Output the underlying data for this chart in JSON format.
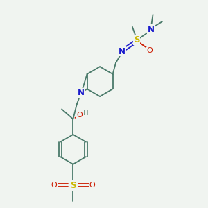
{
  "background_color": "#f0f4f0",
  "bond_color": "#4a7a6a",
  "sulfur_color": "#ccb800",
  "nitrogen_color": "#1a1acc",
  "oxygen_color": "#cc1a00",
  "hydrogen_color": "#7a9a8a",
  "figsize": [
    3.0,
    3.0
  ],
  "dpi": 100,
  "xlim": [
    0,
    10
  ],
  "ylim": [
    0,
    10
  ]
}
